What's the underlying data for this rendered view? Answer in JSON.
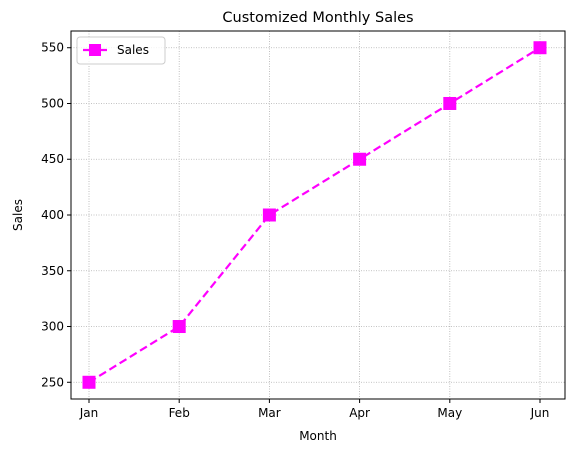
{
  "chart_data": {
    "type": "line",
    "title": "Customized Monthly Sales",
    "xlabel": "Month",
    "ylabel": "Sales",
    "categories": [
      "Jan",
      "Feb",
      "Mar",
      "Apr",
      "May",
      "Jun"
    ],
    "series": [
      {
        "name": "Sales",
        "values": [
          250,
          300,
          400,
          450,
          500,
          550
        ]
      }
    ],
    "ylim": [
      235,
      565
    ],
    "yticks": [
      250,
      300,
      350,
      400,
      450,
      500,
      550
    ],
    "grid": true,
    "legend_position": "top-left",
    "line_style": "dashed",
    "marker": "square",
    "color": "#ff00ff"
  }
}
